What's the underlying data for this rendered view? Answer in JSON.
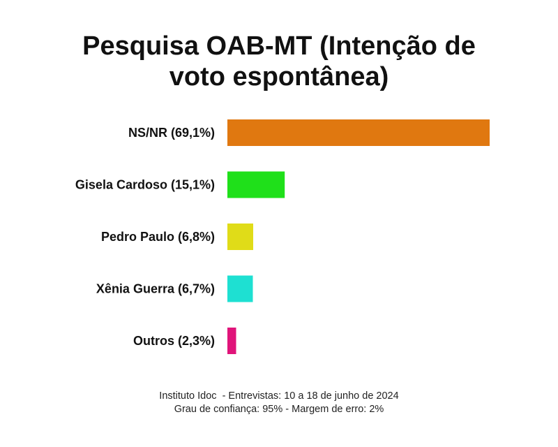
{
  "chart_data": {
    "type": "bar",
    "orientation": "horizontal",
    "title_lines": [
      "Pesquisa OAB-MT (Intenção de",
      "voto espontânea)"
    ],
    "categories": [
      "NS/NR (69,1%)",
      "Gisela Cardoso (15,1%)",
      "Pedro Paulo (6,8%)",
      "Xênia Guerra (6,7%)",
      "Outros (2,3%)"
    ],
    "values": [
      69.1,
      15.1,
      6.8,
      6.7,
      2.3
    ],
    "colors": [
      "#e07810",
      "#1fe01a",
      "#e0dc18",
      "#1ee0d2",
      "#e0147a"
    ],
    "unit": "%",
    "grid": false,
    "legend": "none"
  },
  "footer": {
    "line1": "Instituto Idoc  - Entrevistas: 10 a 18 de junho de 2024",
    "line2": "Grau de confiança: 95% - Margem de erro: 2%"
  }
}
